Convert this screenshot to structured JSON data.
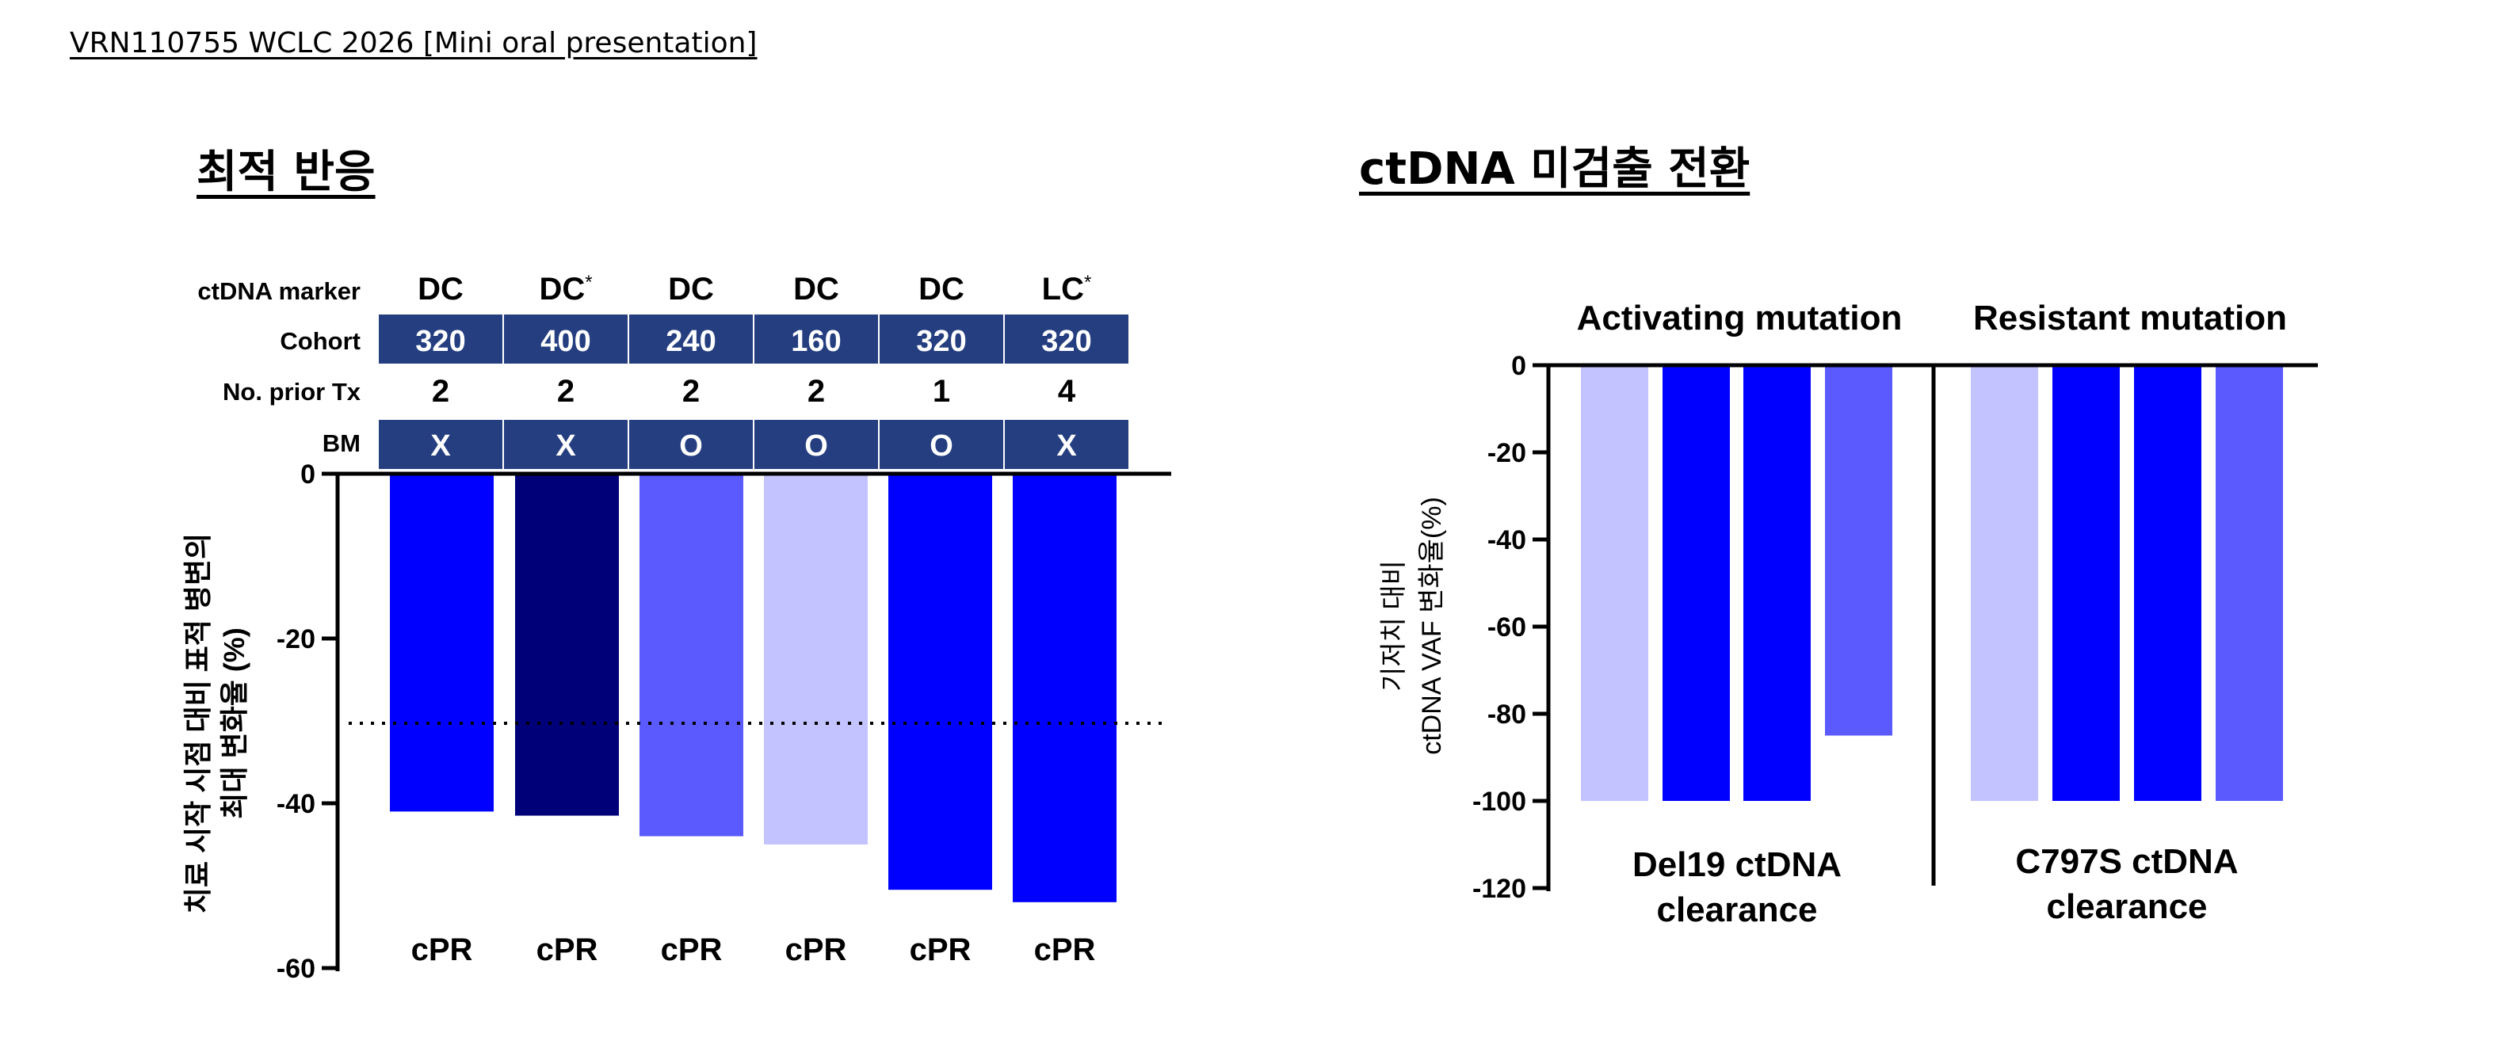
{
  "header": {
    "text": "VRN110755 WCLC 2026 [Mini oral presentation]"
  },
  "left_panel": {
    "title": "최적 반응",
    "table": {
      "row_labels": [
        "ctDNA marker",
        "Cohort",
        "No. prior Tx",
        "BM"
      ],
      "ctdna_marker": [
        "DC",
        "DC",
        "DC",
        "DC",
        "DC",
        "LC"
      ],
      "marker_asterisk": [
        "",
        "*",
        "",
        "",
        "",
        "*"
      ],
      "cohort": [
        "320",
        "400",
        "240",
        "160",
        "320",
        "320"
      ],
      "prior_tx": [
        "2",
        "2",
        "2",
        "2",
        "1",
        "4"
      ],
      "bm": [
        "X",
        "X",
        "O",
        "O",
        "O",
        "X"
      ]
    }
  },
  "right_panel": {
    "title": "ctDNA 미검출 전환"
  },
  "colors": {
    "table_header_bg": "#243e80",
    "bright_blue": "#0000ff",
    "navy": "#000078",
    "medium_blue": "#5a5aff",
    "light_lavender": "#c3c3ff"
  },
  "chart_data": [
    {
      "type": "bar",
      "ylabel_line1": "치료 시작 시점 대비 표적 병변의",
      "ylabel_line2": "최대 변화율 (%)",
      "ylim": [
        -60,
        0
      ],
      "yticks": [
        0,
        -20,
        -40,
        -60
      ],
      "threshold": -30,
      "values": [
        -41,
        -41.5,
        -44,
        -45,
        -50.5,
        -52
      ],
      "bar_colors": [
        "#0000ff",
        "#000078",
        "#5a5aff",
        "#c3c3ff",
        "#0000ff",
        "#0000ff"
      ],
      "responses": [
        "cPR",
        "cPR",
        "cPR",
        "cPR",
        "cPR",
        "cPR"
      ]
    },
    {
      "type": "bar",
      "ylabel_line1": "기저치 대비",
      "ylabel_line2": "ctDNA VAF 변화율(%)",
      "ylim": [
        -120,
        0
      ],
      "yticks": [
        0,
        -20,
        -40,
        -60,
        -80,
        -100,
        -120
      ],
      "groups": [
        {
          "name": "Activating mutation",
          "caption_line1": "Del19 ctDNA",
          "caption_line2": "clearance",
          "values": [
            -100,
            -100,
            -100,
            -85
          ],
          "bar_colors": [
            "#c3c3ff",
            "#0000ff",
            "#0000ff",
            "#5a5aff"
          ]
        },
        {
          "name": "Resistant mutation",
          "caption_line1": "C797S ctDNA",
          "caption_line2": "clearance",
          "values": [
            -100,
            -100,
            -100,
            -100
          ],
          "bar_colors": [
            "#c3c3ff",
            "#0000ff",
            "#0000ff",
            "#5a5aff"
          ]
        }
      ]
    }
  ]
}
